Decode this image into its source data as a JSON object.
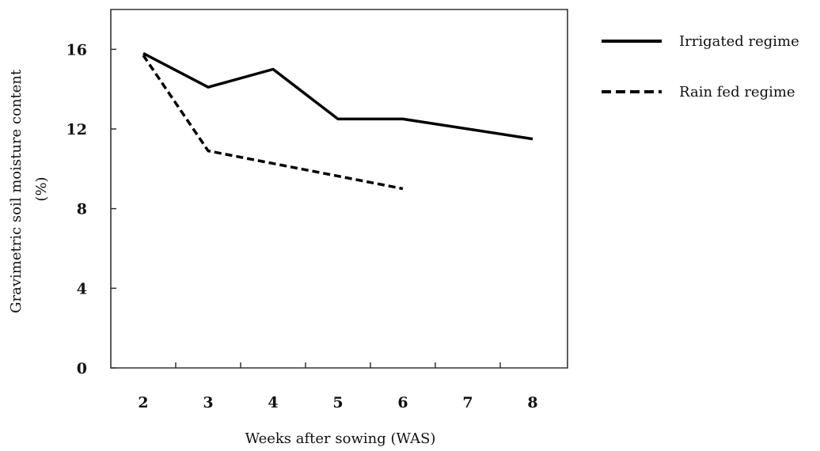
{
  "chart_data": {
    "type": "line",
    "title": "",
    "xlabel": "Weeks after sowing (WAS)",
    "ylabel_lines": [
      "Gravimetric soil moisture content",
      "(%)"
    ],
    "x_categories": [
      "2",
      "3",
      "4",
      "5",
      "6",
      "7",
      "8"
    ],
    "y_ticks": [
      "0",
      "4",
      "8",
      "12",
      "16"
    ],
    "ylim": [
      0,
      18
    ],
    "grid": false,
    "legend_position": "right",
    "series": [
      {
        "name": "Irrigated regime",
        "style": "solid",
        "color": "#000000",
        "points": [
          {
            "x": "2",
            "y": 15.8
          },
          {
            "x": "3",
            "y": 14.1
          },
          {
            "x": "4",
            "y": 15.0
          },
          {
            "x": "5",
            "y": 12.5
          },
          {
            "x": "6",
            "y": 12.5
          },
          {
            "x": "8",
            "y": 11.5
          }
        ]
      },
      {
        "name": "Rain fed regime",
        "style": "dashed",
        "color": "#000000",
        "points": [
          {
            "x": "2",
            "y": 15.7
          },
          {
            "x": "3",
            "y": 10.9
          },
          {
            "x": "6",
            "y": 9.0
          }
        ]
      }
    ]
  }
}
